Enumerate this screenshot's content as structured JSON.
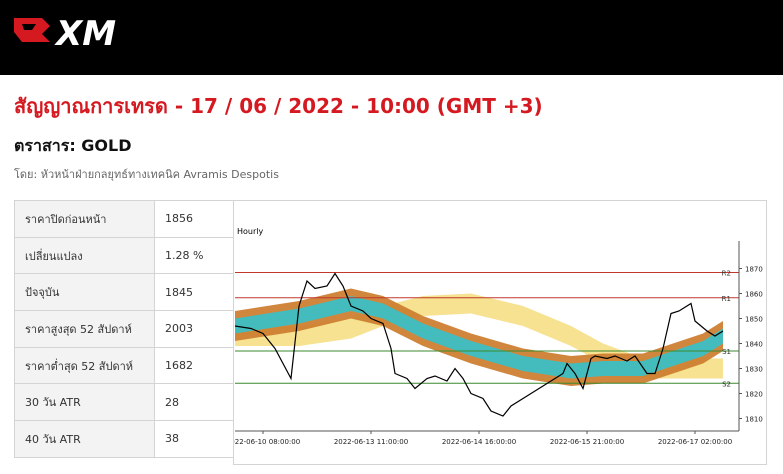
{
  "header": {
    "logo": "XM"
  },
  "title": "สัญญาณการเทรด - 17 / 06 / 2022 - 10:00 (GMT +3)",
  "instrument": "ตราสาร: GOLD",
  "author": "โดย: หัวหน้าฝ่ายกลยุทธ์ทางเทคนิค Avramis Despotis",
  "table": {
    "rows": [
      [
        "ราคาปิดก่อนหน้า",
        "1856"
      ],
      [
        "เปลี่ยนแปลง",
        "1.28 %"
      ],
      [
        "ปัจจุบัน",
        "1845"
      ],
      [
        "ราคาสูงสุด 52 สัปดาห์",
        "2003"
      ],
      [
        "ราคาต่ำสุด 52 สัปดาห์",
        "1682"
      ],
      [
        "30 วัน ATR",
        "28"
      ],
      [
        "40 วัน ATR",
        "38"
      ]
    ]
  },
  "chart_data": {
    "type": "line",
    "title": "Hourly",
    "xlim": [
      0,
      126
    ],
    "xticks": [
      {
        "value": 7,
        "label": "2022-06-10 08:00:00"
      },
      {
        "value": 34,
        "label": "2022-06-13 11:00:00"
      },
      {
        "value": 61,
        "label": "2022-06-14 16:00:00"
      },
      {
        "value": 88,
        "label": "2022-06-15 21:00:00"
      },
      {
        "value": 115,
        "label": "2022-06-17 02:00:00"
      }
    ],
    "ylim": [
      1805,
      1881
    ],
    "yticks": [
      1810,
      1820,
      1830,
      1840,
      1850,
      1860,
      1870
    ],
    "price": {
      "color": "#000000",
      "x": [
        0,
        4,
        7,
        10,
        14,
        16,
        18,
        20,
        23,
        25,
        27,
        29,
        32,
        34,
        37,
        39,
        40,
        43,
        45,
        48,
        50,
        53,
        55,
        57,
        59,
        62,
        64,
        67,
        69,
        72,
        74,
        77,
        79,
        82,
        83,
        85,
        87,
        89,
        90,
        93,
        95,
        98,
        100,
        103,
        105,
        107,
        109,
        111,
        114,
        115,
        118,
        120,
        122
      ],
      "values": [
        1847,
        1846,
        1844,
        1838,
        1826,
        1855,
        1865,
        1862,
        1863,
        1868,
        1863,
        1855,
        1853,
        1850,
        1848,
        1838,
        1828,
        1826,
        1822,
        1826,
        1827,
        1825,
        1830,
        1826,
        1820,
        1818,
        1813,
        1811,
        1815,
        1818,
        1820,
        1823,
        1825,
        1828,
        1832,
        1828,
        1822,
        1834,
        1835,
        1834,
        1835,
        1833,
        1835,
        1828,
        1828,
        1838,
        1852,
        1853,
        1856,
        1849,
        1845,
        1843,
        1845
      ]
    },
    "band_x": [
      0,
      16,
      29,
      37,
      47,
      59,
      72,
      84,
      92,
      102,
      117,
      122
    ],
    "bands": [
      {
        "color": "#f5e08a",
        "lower": [
          1839,
          1839,
          1842,
          1847,
          1851,
          1852,
          1847,
          1839,
          1832,
          1826,
          1826,
          1826
        ],
        "upper": [
          1847,
          1847,
          1850,
          1855,
          1859,
          1860,
          1855,
          1847,
          1840,
          1834,
          1834,
          1834
        ]
      },
      {
        "color": "#cd7f32",
        "lower": [
          1841,
          1845,
          1850,
          1847,
          1839,
          1832,
          1826,
          1823,
          1824,
          1824,
          1832,
          1837
        ],
        "upper": [
          1853,
          1857,
          1862,
          1859,
          1851,
          1844,
          1838,
          1835,
          1836,
          1836,
          1844,
          1849
        ]
      },
      {
        "color": "#3cbfc4",
        "lower": [
          1844,
          1848,
          1853,
          1850,
          1842,
          1835,
          1829,
          1826,
          1827,
          1827,
          1835,
          1840
        ],
        "upper": [
          1850,
          1854,
          1859,
          1856,
          1848,
          1841,
          1835,
          1832,
          1833,
          1833,
          1841,
          1846
        ]
      }
    ],
    "levels": [
      {
        "name": "R2",
        "value": 1868.4,
        "color": "#c0392b"
      },
      {
        "name": "R1",
        "value": 1858.3,
        "color": "#c0392b"
      },
      {
        "name": "S1",
        "value": 1837,
        "color": "#3a8a2e"
      },
      {
        "name": "S2",
        "value": 1824.1,
        "color": "#3a8a2e"
      }
    ]
  }
}
